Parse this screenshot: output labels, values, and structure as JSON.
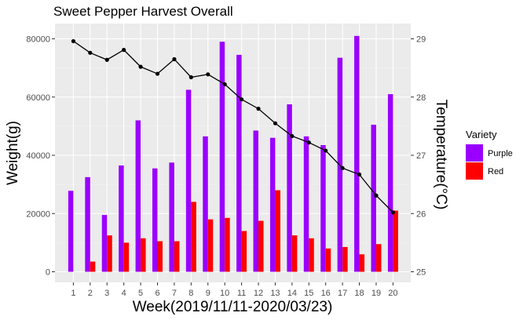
{
  "chart_data": {
    "type": "bar+line",
    "title": "Sweet Pepper Harvest Overall",
    "xlabel": "Week(2019/11/11-2020/03/23)",
    "ylabel_left": "Weight(g)",
    "ylabel_right": "Temperature(°C)",
    "categories": [
      "1",
      "2",
      "3",
      "4",
      "5",
      "6",
      "7",
      "8",
      "9",
      "10",
      "11",
      "12",
      "13",
      "14",
      "15",
      "16",
      "17",
      "18",
      "19",
      "20"
    ],
    "ylim_left": [
      0,
      80000
    ],
    "ylim_right": [
      25,
      29
    ],
    "yticks_left": [
      {
        "value": 0,
        "label": "0"
      },
      {
        "value": 20000,
        "label": "20000"
      },
      {
        "value": 40000,
        "label": "40000"
      },
      {
        "value": 60000,
        "label": "60000"
      },
      {
        "value": 80000,
        "label": "80000"
      }
    ],
    "yticks_right": [
      {
        "value": 25,
        "label": "25"
      },
      {
        "value": 26,
        "label": "26"
      },
      {
        "value": 27,
        "label": "27"
      },
      {
        "value": 28,
        "label": "28"
      },
      {
        "value": 29,
        "label": "29"
      }
    ],
    "series": [
      {
        "name": "Purple",
        "type": "bar",
        "color": "#9a00ff",
        "values": [
          27800,
          32500,
          19500,
          36500,
          52000,
          35500,
          37500,
          62500,
          46500,
          79000,
          74500,
          48500,
          46000,
          57500,
          46500,
          43500,
          73500,
          81000,
          50500,
          61000
        ]
      },
      {
        "name": "Red",
        "type": "bar",
        "color": "#ff0000",
        "values": [
          0,
          3500,
          12500,
          10000,
          11500,
          10500,
          10500,
          24000,
          18000,
          18500,
          14000,
          17500,
          28000,
          12500,
          11500,
          8000,
          8500,
          6000,
          9500,
          21000
        ]
      },
      {
        "type": "line",
        "axis": "right",
        "color": "#000000",
        "values": [
          28.96,
          28.76,
          28.64,
          28.81,
          28.52,
          28.4,
          28.65,
          28.34,
          28.39,
          28.22,
          27.96,
          27.8,
          27.55,
          27.33,
          27.22,
          27.08,
          26.78,
          26.67,
          26.31,
          26.02
        ]
      }
    ],
    "legend": {
      "title": "Variety",
      "position": "right",
      "items": [
        {
          "label": "Purple",
          "color": "#9a00ff"
        },
        {
          "label": "Red",
          "color": "#ff0000"
        }
      ]
    },
    "grid": true
  }
}
